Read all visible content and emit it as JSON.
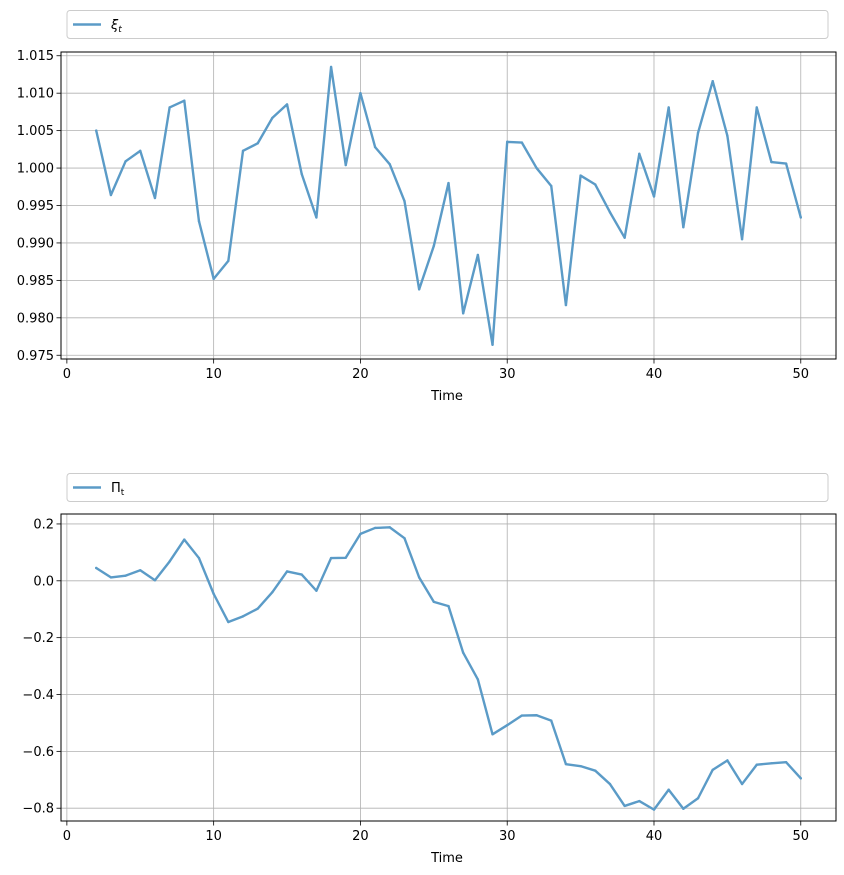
{
  "chart_data": [
    {
      "type": "line",
      "xlabel": "Time",
      "ylabel": "",
      "xlim": [
        -0.4,
        52.4
      ],
      "ylim": [
        0.9745,
        1.0155
      ],
      "xticks": [
        0,
        10,
        20,
        30,
        40,
        50
      ],
      "yticks": [
        0.975,
        0.98,
        0.985,
        0.99,
        0.995,
        1.0,
        1.005,
        1.01,
        1.015
      ],
      "ytick_labels": [
        "0.975",
        "0.980",
        "0.985",
        "0.990",
        "0.995",
        "1.000",
        "1.005",
        "1.010",
        "1.015"
      ],
      "grid": true,
      "legend_position": "above plot, spanning full width",
      "series": [
        {
          "name": "ξ_t",
          "color": "#5b9bc7",
          "x": [
            2,
            3,
            4,
            5,
            6,
            7,
            8,
            9,
            10,
            11,
            12,
            13,
            14,
            15,
            16,
            17,
            18,
            19,
            20,
            21,
            22,
            23,
            24,
            25,
            26,
            27,
            28,
            29,
            30,
            31,
            32,
            33,
            34,
            35,
            36,
            37,
            38,
            39,
            40,
            41,
            42,
            43,
            44,
            45,
            46,
            47,
            48,
            49,
            50
          ],
          "values": [
            1.005,
            0.9964,
            1.0009,
            1.0023,
            0.996,
            1.0081,
            1.009,
            0.9929,
            0.9852,
            0.9876,
            1.0023,
            1.0033,
            1.0067,
            1.0085,
            0.9992,
            0.9934,
            1.0135,
            1.0004,
            1.01,
            1.0028,
            1.0005,
            0.9956,
            0.9838,
            0.9896,
            0.998,
            0.9806,
            0.9884,
            0.9764,
            1.0035,
            1.0034,
            1.0,
            0.9976,
            0.9817,
            0.999,
            0.9978,
            0.9941,
            0.9907,
            1.0019,
            0.9962,
            1.0081,
            0.9921,
            1.0047,
            1.0116,
            1.0043,
            0.9905,
            1.0081,
            1.0008,
            1.0006,
            0.9934
          ]
        }
      ]
    },
    {
      "type": "line",
      "xlabel": "Time",
      "ylabel": "",
      "xlim": [
        -0.4,
        52.4
      ],
      "ylim": [
        -0.845,
        0.235
      ],
      "xticks": [
        0,
        10,
        20,
        30,
        40,
        50
      ],
      "yticks": [
        -0.8,
        -0.6,
        -0.4,
        -0.2,
        0.0,
        0.2
      ],
      "ytick_labels": [
        "−0.8",
        "−0.6",
        "−0.4",
        "−0.2",
        "0.0",
        "0.2"
      ],
      "grid": true,
      "legend_position": "above plot, spanning full width",
      "series": [
        {
          "name": "Π_t",
          "color": "#5b9bc7",
          "x": [
            2,
            3,
            4,
            5,
            6,
            7,
            8,
            9,
            10,
            11,
            12,
            13,
            14,
            15,
            16,
            17,
            18,
            19,
            20,
            21,
            22,
            23,
            24,
            25,
            26,
            27,
            28,
            29,
            30,
            31,
            32,
            33,
            34,
            35,
            36,
            37,
            38,
            39,
            40,
            41,
            42,
            43,
            44,
            45,
            46,
            47,
            48,
            49,
            50
          ],
          "values": [
            0.045,
            0.012,
            0.018,
            0.037,
            0.002,
            0.068,
            0.145,
            0.08,
            -0.046,
            -0.145,
            -0.125,
            -0.098,
            -0.04,
            0.033,
            0.022,
            -0.035,
            0.08,
            0.081,
            0.165,
            0.186,
            0.188,
            0.15,
            0.012,
            -0.074,
            -0.089,
            -0.253,
            -0.347,
            -0.54,
            -0.508,
            -0.474,
            -0.473,
            -0.492,
            -0.645,
            -0.652,
            -0.668,
            -0.715,
            -0.792,
            -0.775,
            -0.805,
            -0.735,
            -0.802,
            -0.765,
            -0.665,
            -0.632,
            -0.715,
            -0.647,
            -0.642,
            -0.638,
            -0.695
          ]
        }
      ]
    }
  ]
}
